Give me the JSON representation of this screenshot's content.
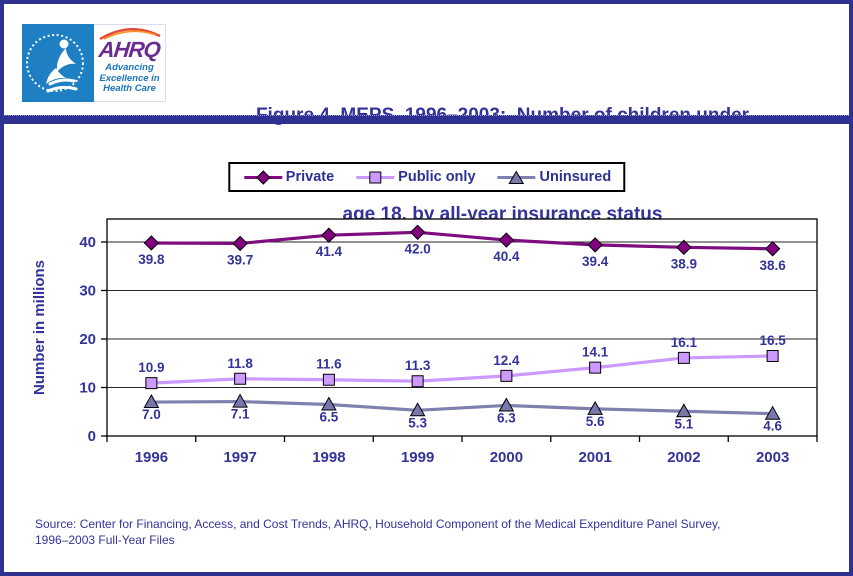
{
  "header": {
    "logo": {
      "hhs_seal": "department-of-health-and-human-services-usa",
      "ahrq_word": "AHRQ",
      "tagline_line1": "Advancing",
      "tagline_line2": "Excellence in",
      "tagline_line3": "Health Care"
    },
    "title_line1": "Figure 4. MEPS, 1996–2003:  Number of children under",
    "title_line2": "age 18, by all-year insurance status"
  },
  "chart_data": {
    "type": "line",
    "title": "Figure 4. MEPS, 1996–2003: Number of children under age 18, by all-year insurance status",
    "categories": [
      "1996",
      "1997",
      "1998",
      "1999",
      "2000",
      "2001",
      "2002",
      "2003"
    ],
    "series": [
      {
        "name": "Private",
        "color": "#7E0D80",
        "marker_color": "#800080",
        "marker": "diamond",
        "label_position": "below",
        "values": [
          39.8,
          39.7,
          41.4,
          42.0,
          40.4,
          39.4,
          38.9,
          38.6
        ]
      },
      {
        "name": "Public only",
        "color": "#CC99FF",
        "marker_color": "#CC99FF",
        "marker": "square",
        "label_position": "above",
        "values": [
          10.9,
          11.8,
          11.6,
          11.3,
          12.4,
          14.1,
          16.1,
          16.5
        ]
      },
      {
        "name": "Uninsured",
        "color": "#8080B0",
        "marker_color": "#7878AC",
        "marker": "triangle",
        "label_position": "below",
        "values": [
          7.0,
          7.1,
          6.5,
          5.3,
          6.3,
          5.6,
          5.1,
          4.6
        ]
      }
    ],
    "xlabel": "",
    "ylabel": "Number in millions",
    "ylim": [
      0,
      45
    ],
    "yticks": [
      0,
      10,
      20,
      30,
      40
    ],
    "grid": true,
    "legend_position": "top"
  },
  "source": {
    "line1": "Source: Center for Financing, Access, and Cost Trends, AHRQ, Household Component of the Medical Expenditure Panel Survey,",
    "line2": "1996–2003 Full-Year Files"
  },
  "colors": {
    "navy_text": "#333399",
    "page_border": "#2E3192",
    "hhs_blue": "#1E7FC2",
    "ahrq_purple": "#6B2C91",
    "tagline_blue": "#1C75BC",
    "gridline": "#262626"
  }
}
